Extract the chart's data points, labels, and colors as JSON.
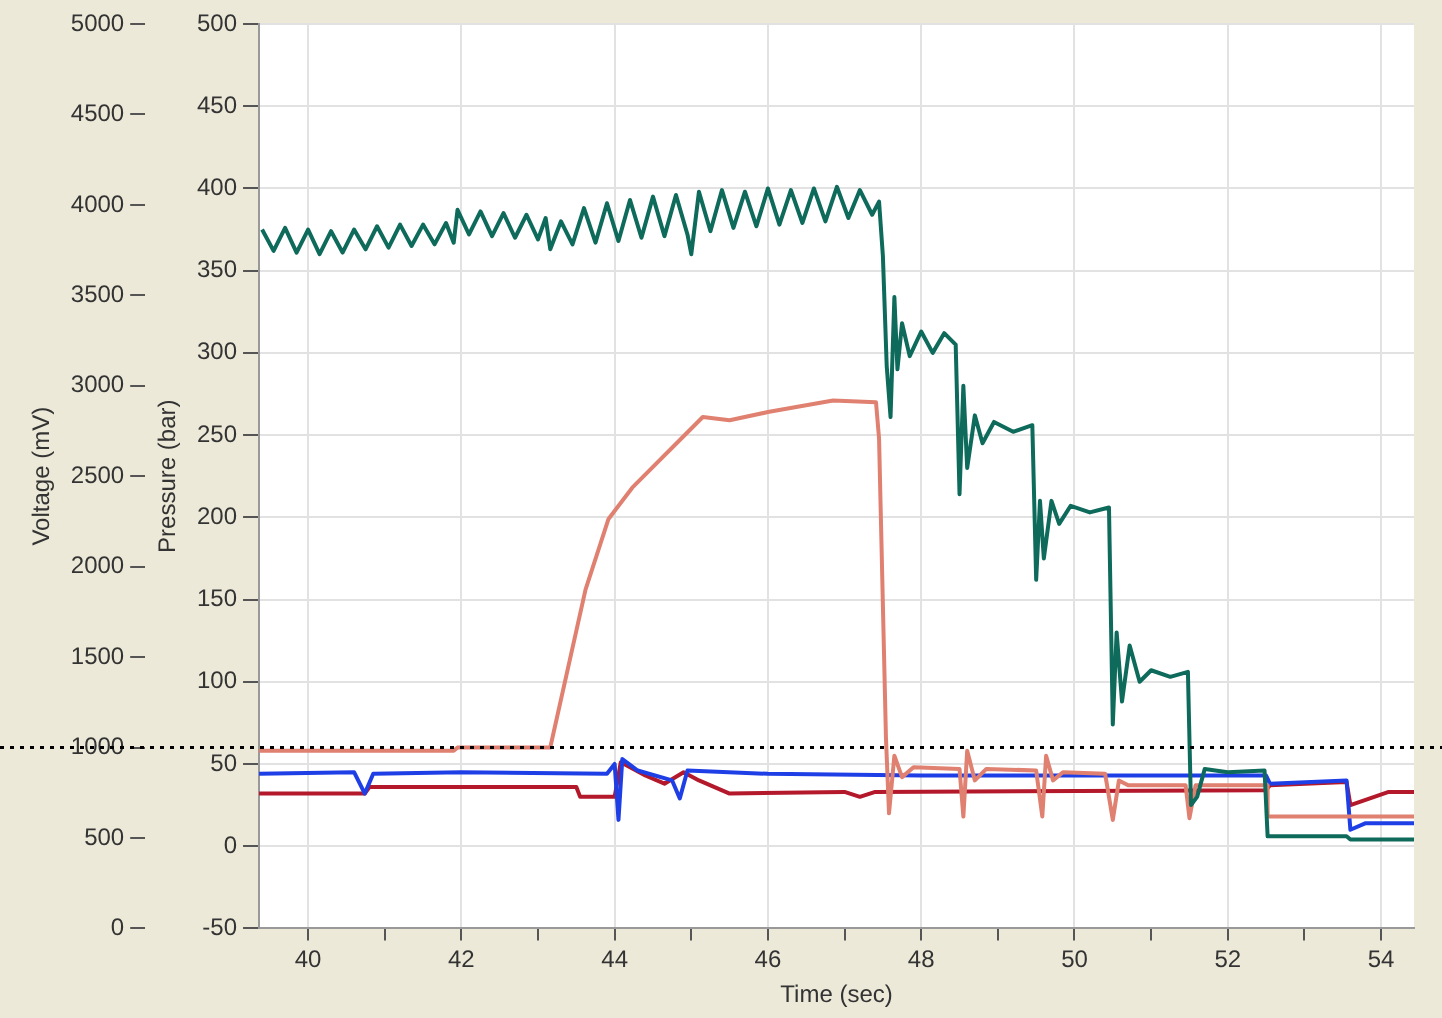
{
  "chart_data": {
    "type": "line",
    "xlabel": "Time (sec)",
    "ylabel": "Pressure (bar)",
    "y2label": "Voltage (mV)",
    "xlim": [
      39.36,
      54.43
    ],
    "xticks": [
      40,
      {
        "value": 41,
        "label": null
      },
      42,
      {
        "value": 43,
        "label": null
      },
      44,
      {
        "value": 45,
        "label": null
      },
      46,
      {
        "value": 47,
        "label": null
      },
      48,
      {
        "value": 49,
        "label": null
      },
      50,
      {
        "value": 51,
        "label": null
      },
      52,
      {
        "value": 53,
        "label": null
      },
      54
    ],
    "ylim": [
      -50,
      500
    ],
    "yticks": [
      -50,
      0,
      50,
      100,
      150,
      200,
      250,
      300,
      350,
      400,
      450,
      500
    ],
    "y2lim": [
      0,
      5000
    ],
    "y2ticks": [
      0,
      500,
      1000,
      1500,
      2000,
      2500,
      3000,
      3500,
      4000,
      4500,
      5000
    ],
    "grid": true,
    "legend": false,
    "marker": "none",
    "line_style": "solid",
    "ref_lines": [
      {
        "axis": "y2",
        "value": 1000,
        "color": "#000000",
        "line_style": "dotted"
      }
    ],
    "series": [
      {
        "color": "#0e6b5c",
        "x": [
          39.4,
          39.55,
          39.7,
          39.85,
          40.0,
          40.15,
          40.3,
          40.45,
          40.6,
          40.75,
          40.9,
          41.05,
          41.2,
          41.35,
          41.5,
          41.65,
          41.8,
          41.9,
          41.95,
          42.1,
          42.25,
          42.4,
          42.55,
          42.7,
          42.85,
          43.0,
          43.1,
          43.16,
          43.3,
          43.45,
          43.6,
          43.75,
          43.9,
          44.05,
          44.2,
          44.35,
          44.5,
          44.65,
          44.8,
          44.95,
          45.0,
          45.1,
          45.25,
          45.4,
          45.55,
          45.7,
          45.85,
          46.0,
          46.15,
          46.3,
          46.45,
          46.6,
          46.75,
          46.9,
          47.05,
          47.2,
          47.36,
          47.45,
          47.5,
          47.55,
          47.6,
          47.65,
          47.69,
          47.75,
          47.85,
          48.0,
          48.15,
          48.3,
          48.45,
          48.5,
          48.55,
          48.6,
          48.7,
          48.8,
          48.95,
          49.2,
          49.45,
          49.5,
          49.55,
          49.6,
          49.7,
          49.8,
          49.95,
          50.2,
          50.45,
          50.5,
          50.55,
          50.62,
          50.72,
          50.85,
          51.0,
          51.25,
          51.48,
          51.52,
          51.6,
          51.7,
          52.0,
          52.48,
          52.52,
          53.0,
          53.55,
          53.6,
          54.43
        ],
        "values": [
          375,
          362,
          376,
          361,
          375,
          360,
          374,
          361,
          375,
          363,
          377,
          364,
          378,
          365,
          378,
          366,
          379,
          367,
          387,
          372,
          386,
          371,
          385,
          370,
          384,
          369,
          382,
          363,
          380,
          366,
          388,
          367,
          391,
          368,
          393,
          370,
          395,
          371,
          396,
          372,
          360,
          398,
          374,
          399,
          376,
          398,
          377,
          400,
          378,
          399,
          379,
          400,
          380,
          401,
          382,
          399,
          384,
          392,
          359,
          292,
          261,
          334,
          290,
          318,
          298,
          313,
          300,
          312,
          305,
          214,
          280,
          230,
          262,
          245,
          258,
          252,
          256,
          162,
          210,
          175,
          210,
          196,
          207,
          203,
          206,
          74,
          130,
          88,
          122,
          100,
          107,
          103,
          106,
          25,
          30,
          47,
          45,
          46,
          6,
          6,
          6,
          4,
          4
        ]
      },
      {
        "color": "#e08070",
        "x": [
          39.36,
          41.9,
          41.95,
          43.16,
          43.62,
          43.92,
          44.23,
          45.15,
          45.5,
          46.0,
          46.85,
          47.41,
          47.45,
          47.54,
          47.58,
          47.65,
          47.75,
          47.9,
          48.5,
          48.55,
          48.6,
          48.7,
          48.85,
          49.5,
          49.58,
          49.63,
          49.72,
          49.85,
          50.4,
          50.5,
          50.58,
          50.7,
          51.45,
          51.5,
          51.58,
          52.5,
          52.52,
          54.43
        ],
        "values": [
          58,
          58,
          60,
          60,
          156,
          199,
          218,
          261,
          259,
          264,
          271,
          270,
          248,
          66,
          20,
          55,
          42,
          48,
          47,
          18,
          58,
          40,
          47,
          46,
          18,
          55,
          40,
          45,
          44,
          16,
          40,
          37,
          37,
          17,
          37,
          37,
          18,
          18
        ]
      },
      {
        "color": "#1f3fe6",
        "x": [
          39.36,
          40.6,
          40.74,
          40.85,
          42.0,
          43.9,
          44.0,
          44.05,
          44.1,
          44.3,
          44.75,
          44.85,
          44.95,
          46.0,
          48.0,
          50.0,
          52.5,
          52.55,
          53.55,
          53.6,
          53.8,
          54.43
        ],
        "values": [
          44,
          45,
          32,
          44,
          45,
          44,
          50,
          16,
          53,
          46,
          40,
          29,
          46,
          44,
          43,
          43,
          43,
          38,
          40,
          10,
          14,
          14
        ]
      },
      {
        "color": "#b3182b",
        "x": [
          39.36,
          40.74,
          40.8,
          43.5,
          43.55,
          44.0,
          44.08,
          44.4,
          44.65,
          44.9,
          45.1,
          45.5,
          47.0,
          47.2,
          47.4,
          52.5,
          52.55,
          53.55,
          53.6,
          54.1,
          54.43
        ],
        "values": [
          32,
          32,
          36,
          36,
          30,
          30,
          51,
          43,
          38,
          45,
          40,
          32,
          33,
          30,
          33,
          34,
          37,
          39,
          25,
          33,
          33
        ]
      }
    ]
  }
}
